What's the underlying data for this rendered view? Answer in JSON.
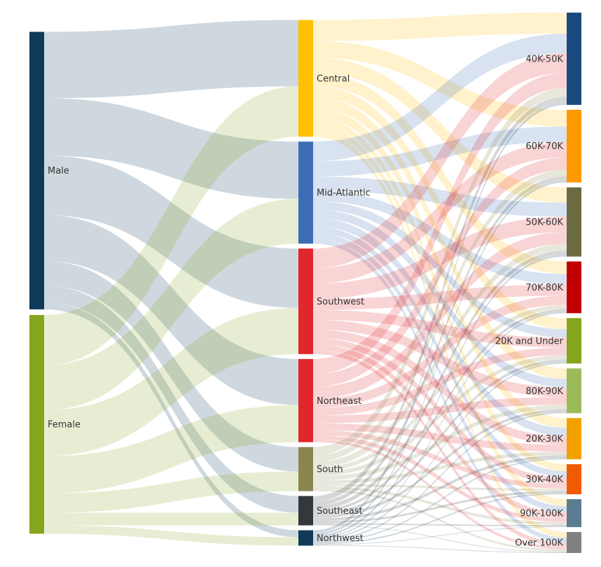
{
  "chart_data": {
    "type": "sankey",
    "title": "",
    "columns": [
      [
        "Male",
        "Female"
      ],
      [
        "Central",
        "Mid-Atlantic",
        "Southwest",
        "Northeast",
        "South",
        "Southeast",
        "Northwest"
      ],
      [
        "40K-50K",
        "60K-70K",
        "50K-60K",
        "70K-80K",
        "20K and Under",
        "80K-90K",
        "20K-30K",
        "30K-40K",
        "90K-100K",
        "Over 100K"
      ]
    ],
    "nodes": [
      {
        "name": "Male",
        "color": "#0f3a59"
      },
      {
        "name": "Female",
        "color": "#85a51c"
      },
      {
        "name": "Central",
        "color": "#ffc000"
      },
      {
        "name": "Mid-Atlantic",
        "color": "#3d6eb5"
      },
      {
        "name": "Southwest",
        "color": "#e1262c"
      },
      {
        "name": "Northeast",
        "color": "#e1262c"
      },
      {
        "name": "South",
        "color": "#8c8550"
      },
      {
        "name": "Southeast",
        "color": "#33383d"
      },
      {
        "name": "Northwest",
        "color": "#0f3a59"
      },
      {
        "name": "40K-50K",
        "color": "#1a4a7e"
      },
      {
        "name": "60K-70K",
        "color": "#ff9900"
      },
      {
        "name": "50K-60K",
        "color": "#6b6b42"
      },
      {
        "name": "70K-80K",
        "color": "#c00000"
      },
      {
        "name": "20K and Under",
        "color": "#85a51c"
      },
      {
        "name": "80K-90K",
        "color": "#9bbb59"
      },
      {
        "name": "20K-30K",
        "color": "#f2a100"
      },
      {
        "name": "30K-40K",
        "color": "#f05a00"
      },
      {
        "name": "90K-100K",
        "color": "#5a7d8f"
      },
      {
        "name": "Over 100K",
        "color": "#808080"
      }
    ],
    "links": [
      {
        "source": "Male",
        "target": "Central",
        "value": 95
      },
      {
        "source": "Male",
        "target": "Mid-Atlantic",
        "value": 82
      },
      {
        "source": "Male",
        "target": "Southwest",
        "value": 85
      },
      {
        "source": "Male",
        "target": "Northeast",
        "value": 66
      },
      {
        "source": "Male",
        "target": "South",
        "value": 35
      },
      {
        "source": "Male",
        "target": "Southeast",
        "value": 24
      },
      {
        "source": "Male",
        "target": "Northwest",
        "value": 10
      },
      {
        "source": "Female",
        "target": "Central",
        "value": 72
      },
      {
        "source": "Female",
        "target": "Mid-Atlantic",
        "value": 64
      },
      {
        "source": "Female",
        "target": "Southwest",
        "value": 66
      },
      {
        "source": "Female",
        "target": "Northeast",
        "value": 53
      },
      {
        "source": "Female",
        "target": "South",
        "value": 28
      },
      {
        "source": "Female",
        "target": "Southeast",
        "value": 18
      },
      {
        "source": "Female",
        "target": "Northwest",
        "value": 12
      },
      {
        "source": "Central",
        "target": "40K-50K",
        "value": 30
      },
      {
        "source": "Central",
        "target": "60K-70K",
        "value": 24
      },
      {
        "source": "Central",
        "target": "50K-60K",
        "value": 22
      },
      {
        "source": "Central",
        "target": "70K-80K",
        "value": 18
      },
      {
        "source": "Central",
        "target": "20K and Under",
        "value": 16
      },
      {
        "source": "Central",
        "target": "80K-90K",
        "value": 15
      },
      {
        "source": "Central",
        "target": "20K-30K",
        "value": 14
      },
      {
        "source": "Central",
        "target": "30K-40K",
        "value": 10
      },
      {
        "source": "Central",
        "target": "90K-100K",
        "value": 10
      },
      {
        "source": "Central",
        "target": "Over 100K",
        "value": 8
      },
      {
        "source": "Mid-Atlantic",
        "target": "40K-50K",
        "value": 28
      },
      {
        "source": "Mid-Atlantic",
        "target": "60K-70K",
        "value": 22
      },
      {
        "source": "Mid-Atlantic",
        "target": "50K-60K",
        "value": 20
      },
      {
        "source": "Mid-Atlantic",
        "target": "70K-80K",
        "value": 15
      },
      {
        "source": "Mid-Atlantic",
        "target": "20K and Under",
        "value": 12
      },
      {
        "source": "Mid-Atlantic",
        "target": "80K-90K",
        "value": 12
      },
      {
        "source": "Mid-Atlantic",
        "target": "20K-30K",
        "value": 12
      },
      {
        "source": "Mid-Atlantic",
        "target": "30K-40K",
        "value": 9
      },
      {
        "source": "Mid-Atlantic",
        "target": "90K-100K",
        "value": 9
      },
      {
        "source": "Mid-Atlantic",
        "target": "Over 100K",
        "value": 7
      },
      {
        "source": "Southwest",
        "target": "40K-50K",
        "value": 28
      },
      {
        "source": "Southwest",
        "target": "60K-70K",
        "value": 22
      },
      {
        "source": "Southwest",
        "target": "50K-60K",
        "value": 22
      },
      {
        "source": "Southwest",
        "target": "70K-80K",
        "value": 16
      },
      {
        "source": "Southwest",
        "target": "20K and Under",
        "value": 14
      },
      {
        "source": "Southwest",
        "target": "80K-90K",
        "value": 14
      },
      {
        "source": "Southwest",
        "target": "20K-30K",
        "value": 12
      },
      {
        "source": "Southwest",
        "target": "30K-40K",
        "value": 9
      },
      {
        "source": "Southwest",
        "target": "90K-100K",
        "value": 8
      },
      {
        "source": "Southwest",
        "target": "Over 100K",
        "value": 6
      },
      {
        "source": "Northeast",
        "target": "40K-50K",
        "value": 22
      },
      {
        "source": "Northeast",
        "target": "60K-70K",
        "value": 18
      },
      {
        "source": "Northeast",
        "target": "50K-60K",
        "value": 17
      },
      {
        "source": "Northeast",
        "target": "70K-80K",
        "value": 13
      },
      {
        "source": "Northeast",
        "target": "20K and Under",
        "value": 11
      },
      {
        "source": "Northeast",
        "target": "80K-90K",
        "value": 11
      },
      {
        "source": "Northeast",
        "target": "20K-30K",
        "value": 10
      },
      {
        "source": "Northeast",
        "target": "30K-40K",
        "value": 7
      },
      {
        "source": "Northeast",
        "target": "90K-100K",
        "value": 6
      },
      {
        "source": "Northeast",
        "target": "Over 100K",
        "value": 4
      },
      {
        "source": "South",
        "target": "40K-50K",
        "value": 12
      },
      {
        "source": "South",
        "target": "60K-70K",
        "value": 9
      },
      {
        "source": "South",
        "target": "50K-60K",
        "value": 9
      },
      {
        "source": "South",
        "target": "70K-80K",
        "value": 6
      },
      {
        "source": "South",
        "target": "20K and Under",
        "value": 6
      },
      {
        "source": "South",
        "target": "80K-90K",
        "value": 6
      },
      {
        "source": "South",
        "target": "20K-30K",
        "value": 5
      },
      {
        "source": "South",
        "target": "30K-40K",
        "value": 3
      },
      {
        "source": "South",
        "target": "90K-100K",
        "value": 4
      },
      {
        "source": "South",
        "target": "Over 100K",
        "value": 3
      },
      {
        "source": "Southeast",
        "target": "40K-50K",
        "value": 8
      },
      {
        "source": "Southeast",
        "target": "60K-70K",
        "value": 6
      },
      {
        "source": "Southeast",
        "target": "50K-60K",
        "value": 6
      },
      {
        "source": "Southeast",
        "target": "70K-80K",
        "value": 4
      },
      {
        "source": "Southeast",
        "target": "20K and Under",
        "value": 4
      },
      {
        "source": "Southeast",
        "target": "80K-90K",
        "value": 4
      },
      {
        "source": "Southeast",
        "target": "20K-30K",
        "value": 4
      },
      {
        "source": "Southeast",
        "target": "30K-40K",
        "value": 3
      },
      {
        "source": "Southeast",
        "target": "90K-100K",
        "value": 2
      },
      {
        "source": "Southeast",
        "target": "Over 100K",
        "value": 1
      },
      {
        "source": "Northwest",
        "target": "40K-50K",
        "value": 4
      },
      {
        "source": "Northwest",
        "target": "60K-70K",
        "value": 3
      },
      {
        "source": "Northwest",
        "target": "50K-60K",
        "value": 3
      },
      {
        "source": "Northwest",
        "target": "70K-80K",
        "value": 2
      },
      {
        "source": "Northwest",
        "target": "20K and Under",
        "value": 2
      },
      {
        "source": "Northwest",
        "target": "80K-90K",
        "value": 2
      },
      {
        "source": "Northwest",
        "target": "20K-30K",
        "value": 2
      },
      {
        "source": "Northwest",
        "target": "30K-40K",
        "value": 2
      },
      {
        "source": "Northwest",
        "target": "90K-100K",
        "value": 1
      },
      {
        "source": "Northwest",
        "target": "Over 100K",
        "value": 1
      }
    ],
    "label_color": "#333333"
  }
}
